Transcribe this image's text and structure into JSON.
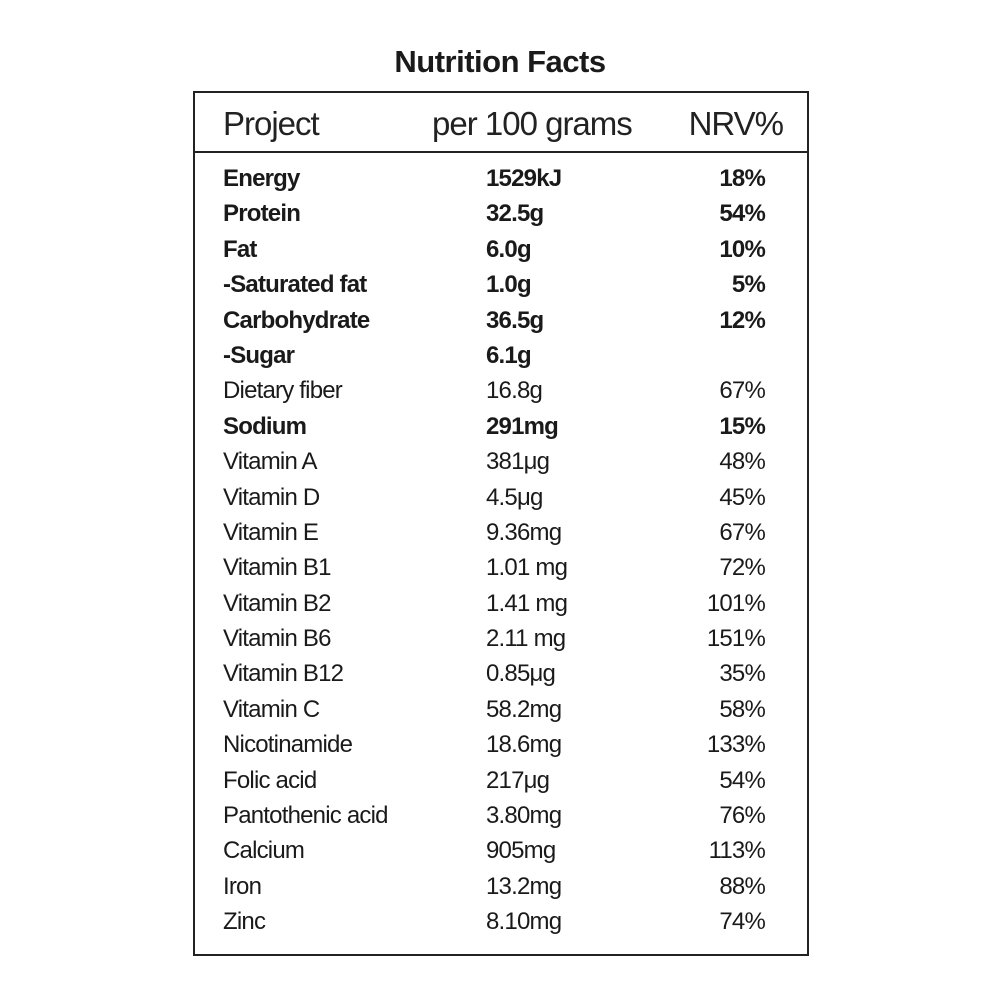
{
  "title": "Nutrition Facts",
  "header": {
    "col1": "Project",
    "col2": "per 100 grams",
    "col3": "NRV%"
  },
  "rows": [
    {
      "name": "Energy",
      "amount": "1529kJ",
      "nrv": "18%",
      "bold": true
    },
    {
      "name": "Protein",
      "amount": "32.5g",
      "nrv": "54%",
      "bold": true
    },
    {
      "name": "Fat",
      "amount": "6.0g",
      "nrv": "10%",
      "bold": true
    },
    {
      "name": "-Saturated fat",
      "amount": "1.0g",
      "nrv": "5%",
      "bold": true
    },
    {
      "name": "Carbohydrate",
      "amount": "36.5g",
      "nrv": "12%",
      "bold": true
    },
    {
      "name": "-Sugar",
      "amount": "6.1g",
      "nrv": "",
      "bold": true
    },
    {
      "name": "Dietary fiber",
      "amount": "16.8g",
      "nrv": "67%",
      "bold": false
    },
    {
      "name": "Sodium",
      "amount": "291mg",
      "nrv": "15%",
      "bold": true
    },
    {
      "name": "Vitamin A",
      "amount": "381μg",
      "nrv": "48%",
      "bold": false
    },
    {
      "name": "Vitamin D",
      "amount": "4.5μg",
      "nrv": "45%",
      "bold": false
    },
    {
      "name": "Vitamin E",
      "amount": "9.36mg",
      "nrv": "67%",
      "bold": false
    },
    {
      "name": "Vitamin B1",
      "amount": "1.01 mg",
      "nrv": "72%",
      "bold": false
    },
    {
      "name": "Vitamin B2",
      "amount": "1.41 mg",
      "nrv": "101%",
      "bold": false
    },
    {
      "name": "Vitamin B6",
      "amount": "2.11 mg",
      "nrv": "151%",
      "bold": false
    },
    {
      "name": "Vitamin B12",
      "amount": "0.85μg",
      "nrv": "35%",
      "bold": false
    },
    {
      "name": "Vitamin C",
      "amount": "58.2mg",
      "nrv": "58%",
      "bold": false
    },
    {
      "name": "Nicotinamide",
      "amount": "18.6mg",
      "nrv": "133%",
      "bold": false
    },
    {
      "name": "Folic acid",
      "amount": "217μg",
      "nrv": "54%",
      "bold": false
    },
    {
      "name": "Pantothenic acid",
      "amount": "3.80mg",
      "nrv": "76%",
      "bold": false
    },
    {
      "name": "Calcium",
      "amount": "905mg",
      "nrv": "113%",
      "bold": false
    },
    {
      "name": "Iron",
      "amount": "13.2mg",
      "nrv": "88%",
      "bold": false
    },
    {
      "name": "Zinc",
      "amount": "8.10mg",
      "nrv": "74%",
      "bold": false
    }
  ]
}
